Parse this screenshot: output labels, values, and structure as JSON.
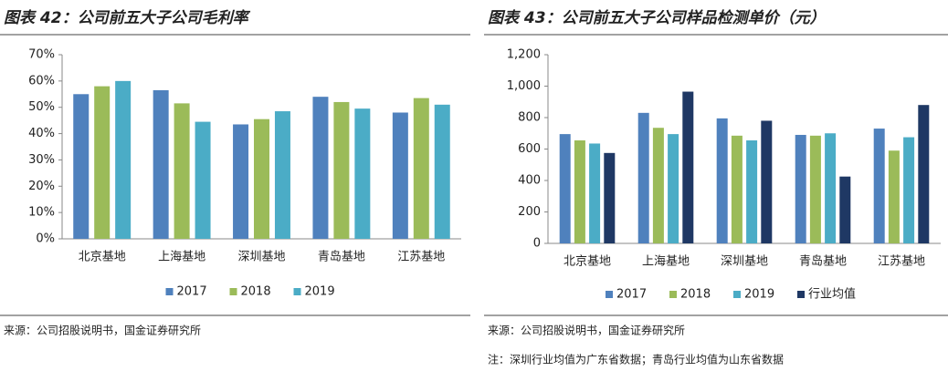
{
  "chart_data": [
    {
      "type": "bar",
      "title": "图表 42：公司前五大子公司毛利率",
      "categories": [
        "北京基地",
        "上海基地",
        "深圳基地",
        "青岛基地",
        "江苏基地"
      ],
      "series": [
        {
          "name": "2017",
          "color": "#4f81bd",
          "values": [
            55,
            56.5,
            43.5,
            54,
            48
          ]
        },
        {
          "name": "2018",
          "color": "#9bbb59",
          "values": [
            58,
            51.5,
            45.5,
            52,
            53.5
          ]
        },
        {
          "name": "2019",
          "color": "#4bacc6",
          "values": [
            60,
            44.5,
            48.5,
            49.5,
            51
          ]
        }
      ],
      "ylim": [
        0,
        70
      ],
      "yticks": [
        {
          "value": 0,
          "label": "0%"
        },
        {
          "value": 10,
          "label": "10%"
        },
        {
          "value": 20,
          "label": "20%"
        },
        {
          "value": 30,
          "label": "30%"
        },
        {
          "value": 40,
          "label": "40%"
        },
        {
          "value": 50,
          "label": "50%"
        },
        {
          "value": 60,
          "label": "60%"
        },
        {
          "value": 70,
          "label": "70%"
        }
      ],
      "source": "来源：公司招股说明书，国金证券研究所"
    },
    {
      "type": "bar",
      "title": "图表 43：公司前五大子公司样品检测单价（元）",
      "categories": [
        "北京基地",
        "上海基地",
        "深圳基地",
        "青岛基地",
        "江苏基地"
      ],
      "series": [
        {
          "name": "2017",
          "color": "#4f81bd",
          "values": [
            695,
            830,
            795,
            690,
            730
          ]
        },
        {
          "name": "2018",
          "color": "#9bbb59",
          "values": [
            655,
            735,
            685,
            685,
            590
          ]
        },
        {
          "name": "2019",
          "color": "#4bacc6",
          "values": [
            635,
            695,
            655,
            700,
            675
          ]
        },
        {
          "name": "行业均值",
          "color": "#1f3864",
          "values": [
            575,
            965,
            780,
            425,
            880
          ]
        }
      ],
      "ylim": [
        0,
        1200
      ],
      "yticks": [
        0,
        200,
        400,
        600,
        800,
        {
          "value": 1000,
          "label": "1,000"
        },
        {
          "value": 1200,
          "label": "1,200"
        }
      ],
      "source": "来源：公司招股说明书，国金证券研究所",
      "note": "注：深圳行业均值为广东省数据；青岛行业均值为山东省数据"
    }
  ]
}
